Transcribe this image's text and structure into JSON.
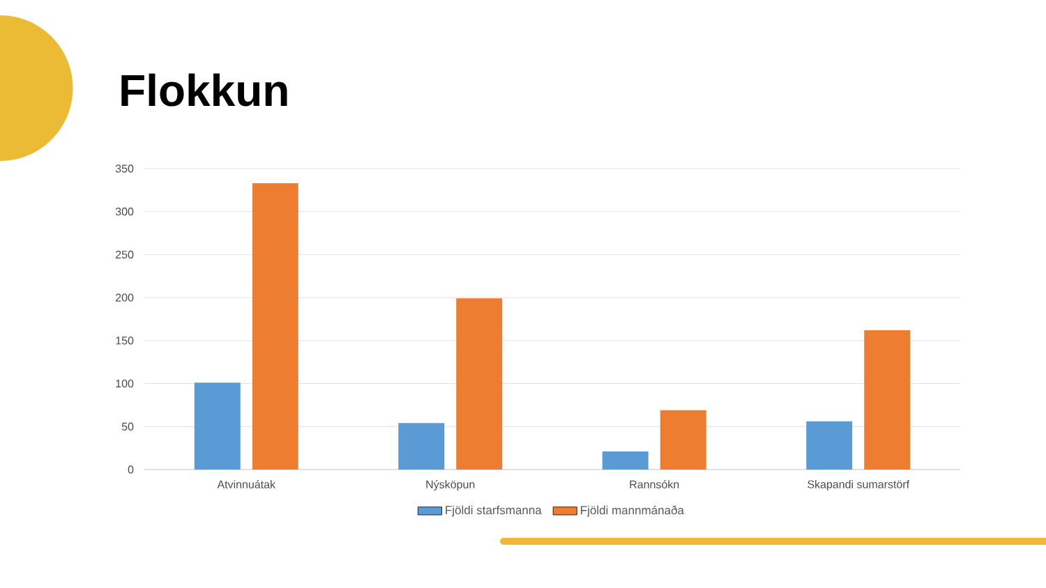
{
  "chart_data": {
    "type": "bar",
    "title": "Flokkun",
    "categories": [
      "Atvinnuátak",
      "Nýsköpun",
      "Rannsókn",
      "Skapandi sumarstörf"
    ],
    "series": [
      {
        "name": "Fjöldi starfsmanna",
        "color": "#5b9bd5",
        "values": [
          101,
          54,
          21,
          56
        ]
      },
      {
        "name": "Fjöldi mannmánaða",
        "color": "#ed7d31",
        "values": [
          333,
          199,
          69,
          162
        ]
      }
    ],
    "ylim": [
      0,
      350
    ],
    "yticks": [
      0,
      50,
      100,
      150,
      200,
      250,
      300,
      350
    ],
    "grid": "y",
    "legend": "bottom"
  }
}
